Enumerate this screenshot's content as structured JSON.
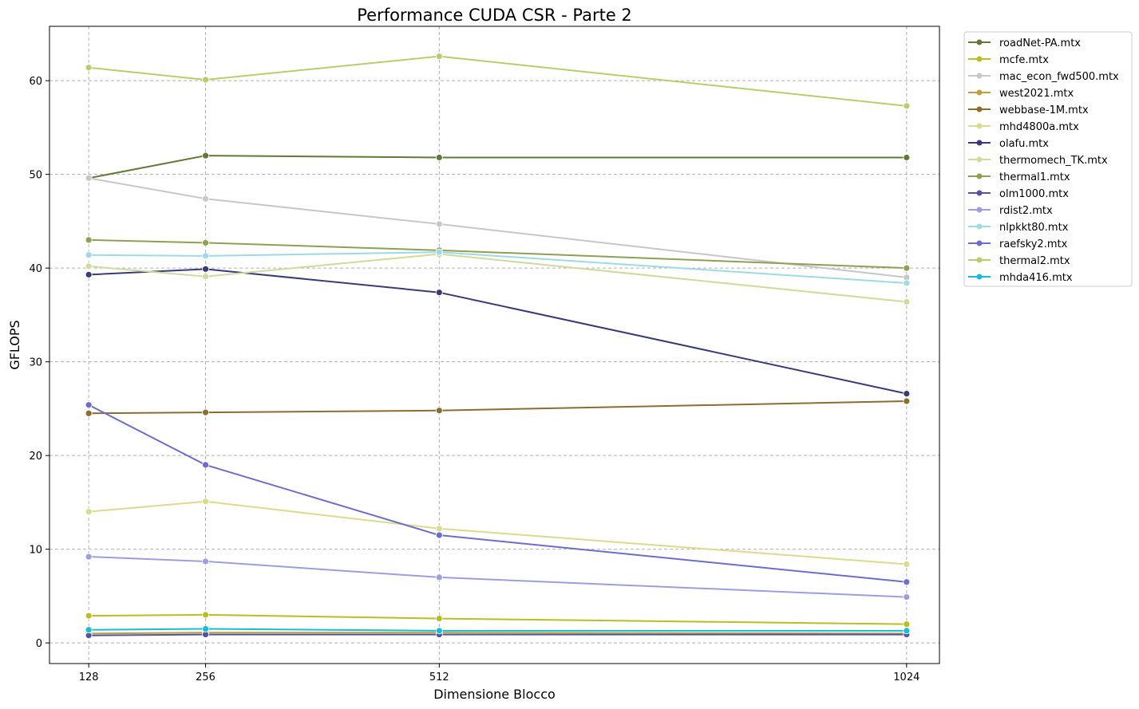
{
  "chart_data": {
    "type": "line",
    "title": "Performance CUDA CSR - Parte 2",
    "xlabel": "Dimensione Blocco",
    "ylabel": "GFLOPS",
    "x": [
      128,
      256,
      512,
      1024
    ],
    "x_tick_labels": [
      "128",
      "256",
      "512",
      "1024"
    ],
    "xlim": [
      85,
      1060
    ],
    "ylim": [
      -2.2,
      65.8
    ],
    "y_ticks": [
      0,
      10,
      20,
      30,
      40,
      50,
      60
    ],
    "y_tick_labels": [
      "0",
      "10",
      "20",
      "30",
      "40",
      "50",
      "60"
    ],
    "grid": true,
    "legend_position": "outside-top-right",
    "series": [
      {
        "name": "roadNet-PA.mtx",
        "color": "#637939",
        "values": [
          49.6,
          52.0,
          51.8,
          51.8
        ]
      },
      {
        "name": "mcfe.mtx",
        "color": "#bcbd22",
        "values": [
          2.9,
          3.0,
          2.6,
          2.0
        ]
      },
      {
        "name": "mac_econ_fwd500.mtx",
        "color": "#c7c7c7",
        "values": [
          49.6,
          47.4,
          44.7,
          39.0
        ]
      },
      {
        "name": "west2021.mtx",
        "color": "#bd9e39",
        "values": [
          1.0,
          1.1,
          1.1,
          1.0
        ]
      },
      {
        "name": "webbase-1M.mtx",
        "color": "#8c6d31",
        "values": [
          24.5,
          24.6,
          24.8,
          25.8
        ]
      },
      {
        "name": "mhd4800a.mtx",
        "color": "#dbdb8d",
        "values": [
          14.0,
          15.1,
          12.2,
          8.4
        ]
      },
      {
        "name": "olafu.mtx",
        "color": "#393b79",
        "values": [
          39.3,
          39.9,
          37.4,
          26.6
        ]
      },
      {
        "name": "thermomech_TK.mtx",
        "color": "#cedb9c",
        "values": [
          40.2,
          39.1,
          41.5,
          36.4
        ]
      },
      {
        "name": "thermal1.mtx",
        "color": "#8ca252",
        "values": [
          43.0,
          42.7,
          41.9,
          40.0
        ]
      },
      {
        "name": "olm1000.mtx",
        "color": "#5254a3",
        "values": [
          0.8,
          0.9,
          0.9,
          0.9
        ]
      },
      {
        "name": "rdist2.mtx",
        "color": "#9c9ede",
        "values": [
          9.2,
          8.7,
          7.0,
          4.9
        ]
      },
      {
        "name": "nlpkkt80.mtx",
        "color": "#9edae5",
        "values": [
          41.4,
          41.3,
          41.7,
          38.4
        ]
      },
      {
        "name": "raefsky2.mtx",
        "color": "#6b6ecf",
        "values": [
          25.4,
          19.0,
          11.5,
          6.5
        ]
      },
      {
        "name": "thermal2.mtx",
        "color": "#b5cf6b",
        "values": [
          61.4,
          60.1,
          62.6,
          57.3
        ]
      },
      {
        "name": "mhda416.mtx",
        "color": "#17becf",
        "values": [
          1.4,
          1.5,
          1.3,
          1.3
        ]
      }
    ]
  }
}
